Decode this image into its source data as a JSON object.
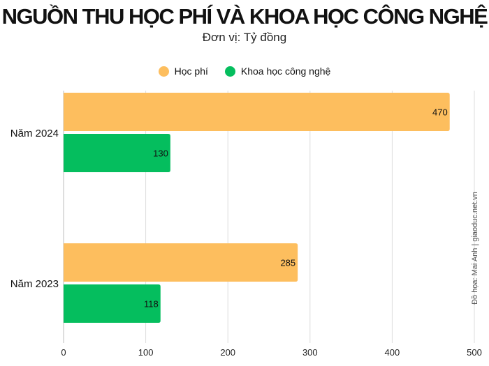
{
  "header": {
    "title": "NGUỒN THU HỌC PHÍ VÀ KHOA HỌC CÔNG NGHỆ",
    "subtitle": "Đơn vị: Tỷ đồng"
  },
  "credit": "Đồ họa: Mai Anh | giaoduc.net.vn",
  "chart_data": {
    "type": "bar",
    "orientation": "horizontal",
    "title": "NGUỒN THU HỌC PHÍ VÀ KHOA HỌC CÔNG NGHỆ",
    "subtitle": "Đơn vị: Tỷ đồng",
    "categories": [
      "Năm 2024",
      "Năm 2023"
    ],
    "series": [
      {
        "name": "Học phí",
        "values": [
          470,
          285
        ],
        "color": "#FDBE5E"
      },
      {
        "name": "Khoa học công nghệ",
        "values": [
          130,
          118
        ],
        "color": "#05BE5E"
      }
    ],
    "xlim": [
      0,
      500
    ],
    "xticks": [
      0,
      100,
      200,
      300,
      400,
      500
    ],
    "grid": "vertical",
    "legend": "top-center",
    "data_labels": true
  }
}
